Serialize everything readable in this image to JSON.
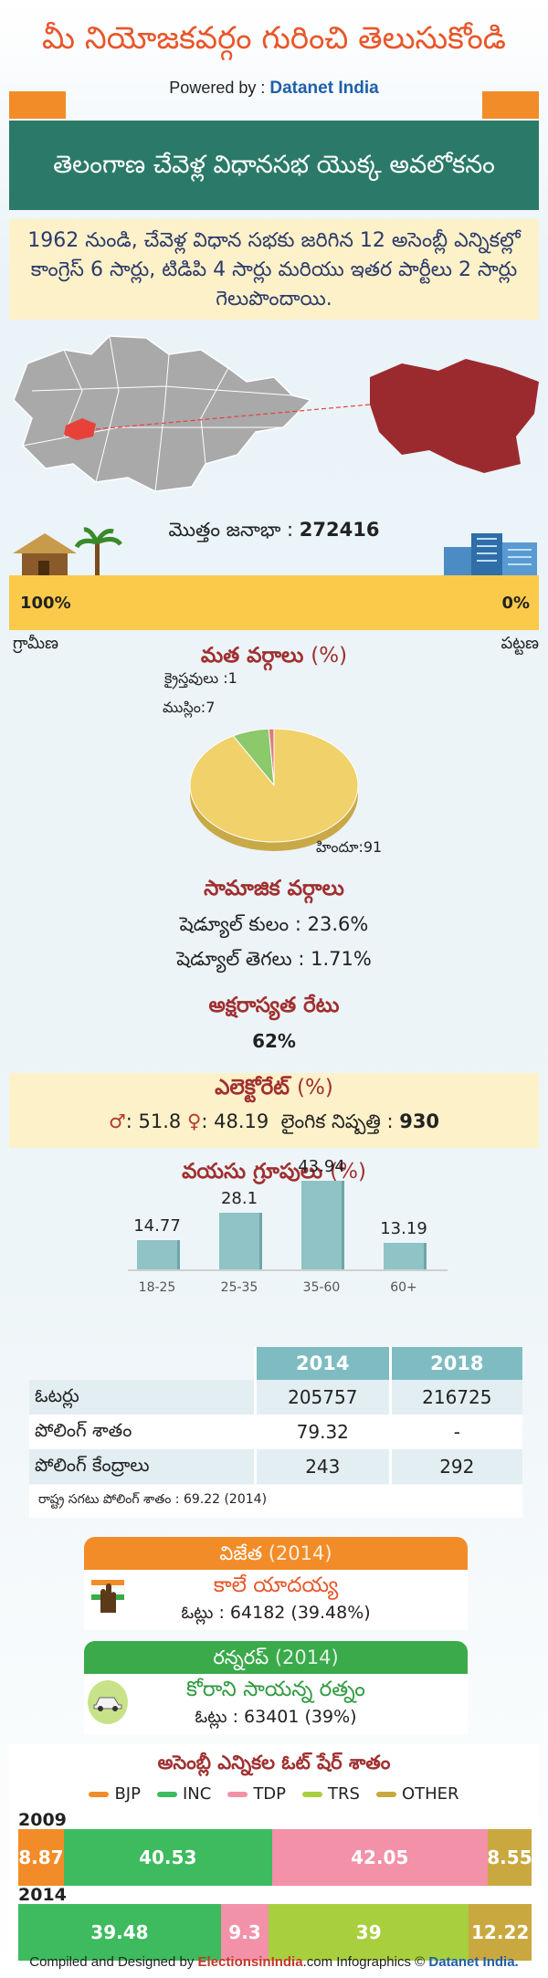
{
  "header": {
    "title": "మీ నియోజకవర్గం గురించి తెలుసుకోండి",
    "powered_prefix": "Powered by :",
    "powered_brand": "Datanet India"
  },
  "banner": {
    "title": "తెలంగాణ చేవెళ్ల విధానసభ యొక్క అవలోకనం"
  },
  "summary": {
    "text": "1962 నుండి, చేవెళ్ల విధాన సభకు జరిగిన 12 అసెంబ్లీ ఎన్నికల్లో కాంగ్రెస్ 6 సార్లు, టిడిపి 4 సార్లు మరియు ఇతర పార్టీలు 2 సార్లు గెలుపొందాయి."
  },
  "population": {
    "label": "మొత్తం జనాభా :",
    "value": "272416",
    "rural_pct": "100%",
    "urban_pct": "0%",
    "rural_label": "గ్రామీణ",
    "urban_label": "పట్టణ",
    "rural_fraction": 1.0
  },
  "religion": {
    "title": "మత వర్గాలు",
    "unit": "(%)",
    "labels": {
      "christian": "క్రైస్తవులు :1",
      "muslim": "ముస్లిం:7",
      "hindu": "హిందూ:91"
    },
    "colors": {
      "hindu": "#f0d16a",
      "muslim": "#8bc96a",
      "christian": "#e07b7b"
    }
  },
  "social": {
    "title": "సామాజిక వర్గాలు",
    "sc_label": "షెడ్యూల్ కులం :",
    "sc_value": "23.6%",
    "st_label": "షెడ్యూల్ తెగలు :",
    "st_value": "1.71%"
  },
  "literacy": {
    "title": "అక్షరాస్యత రేటు",
    "value": "62%"
  },
  "electorate": {
    "title": "ఎలెక్టోరేట్",
    "unit": "(%)",
    "male_value": ": 51.8",
    "female_value": ": 48.19",
    "sex_ratio_label": "లైంగిక నిష్పత్తి :",
    "sex_ratio_value": "930",
    "male_icon": "male-person-icon",
    "female_icon": "female-person-icon"
  },
  "age_groups": {
    "title": "వయసు గ్రూపులు",
    "unit": "(%)"
  },
  "chart_data": {
    "type": "bar",
    "categories": [
      "18-25",
      "25-35",
      "35-60",
      "60+"
    ],
    "values": [
      14.77,
      28.1,
      43.94,
      13.19
    ],
    "value_labels": [
      "14.77",
      "28.1",
      "43.94",
      "13.19"
    ],
    "title": "వయసు గ్రూపులు (%)",
    "ylim": [
      0,
      50
    ],
    "grid": false,
    "color": "#8fc3c6"
  },
  "results_table": {
    "headers": [
      "",
      "2014",
      "2018"
    ],
    "rows": [
      {
        "label": "ఓటర్లు",
        "y2014": "205757",
        "y2018": "216725"
      },
      {
        "label": "పోలింగ్ శాతం",
        "y2014": "79.32",
        "y2018": "-"
      },
      {
        "label": "పోలింగ్ కేంద్రాలు",
        "y2014": "243",
        "y2018": "292"
      }
    ],
    "note": "రాష్ట్ర సగటు పోలింగ్ శాతం : 69.22 (2014)"
  },
  "winner": {
    "heading": "విజేత",
    "year": "(2014)",
    "name": "కాలే యాదయ్య",
    "votes": "ఓట్లు : 64182 (39.48%)",
    "color": "#f28c28",
    "name_color": "#e8562a",
    "badge_icon": "inc-hand-icon"
  },
  "runner_up": {
    "heading": "రన్నరప్",
    "year": "(2014)",
    "name": "కోరాని సాయన్న రత్నం",
    "votes": "ఓట్లు : 63401 (39%)",
    "color": "#3aaa4a",
    "name_color": "#2e9a3e",
    "badge_icon": "trs-car-icon"
  },
  "vote_share": {
    "title": "అసెంబ్లీ ఎన్నికల ఓట్ షేర్ శాతం",
    "legend": [
      {
        "name": "BJP",
        "color": "#f28c28"
      },
      {
        "name": "INC",
        "color": "#3dbb5e"
      },
      {
        "name": "TDP",
        "color": "#f291a8"
      },
      {
        "name": "TRS",
        "color": "#a8cf3e"
      },
      {
        "name": "OTHER",
        "color": "#c9a840"
      }
    ],
    "years": [
      {
        "year": "2009",
        "segments": [
          {
            "party": "BJP",
            "value": 8.87,
            "label": "8.87"
          },
          {
            "party": "INC",
            "value": 40.53,
            "label": "40.53"
          },
          {
            "party": "TDP",
            "value": 42.05,
            "label": "42.05"
          },
          {
            "party": "OTHER",
            "value": 8.55,
            "label": "8.55"
          }
        ]
      },
      {
        "year": "2014",
        "segments": [
          {
            "party": "INC",
            "value": 39.48,
            "label": "39.48"
          },
          {
            "party": "TDP",
            "value": 9.3,
            "label": "9.3"
          },
          {
            "party": "TRS",
            "value": 39,
            "label": "39"
          },
          {
            "party": "OTHER",
            "value": 12.22,
            "label": "12.22"
          }
        ]
      }
    ]
  },
  "footer": {
    "prefix": "Compiled and Designed by",
    "brand_a": "ElectionsinIndia",
    "brand_a_suffix": ".com",
    "middle": "Infographics ©",
    "brand_b": "Datanet India."
  }
}
